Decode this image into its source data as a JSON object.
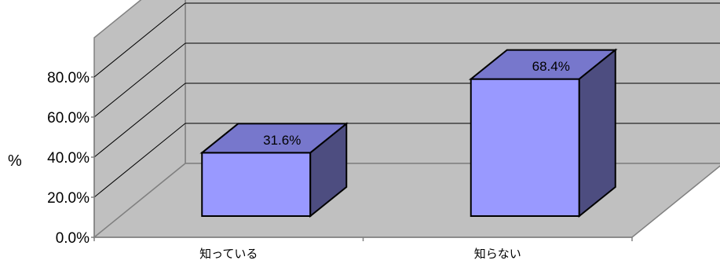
{
  "chart_data": {
    "type": "bar",
    "categories": [
      "知っている",
      "知らない"
    ],
    "values": [
      31.6,
      68.4
    ],
    "data_labels": [
      "31.6%",
      "68.4%"
    ],
    "ylabel": "%",
    "ylim": [
      0,
      80
    ],
    "yticks": [
      "0.0%",
      "20.0%",
      "40.0%",
      "60.0%",
      "80.0%"
    ],
    "grid": true,
    "legend": "none",
    "colors": {
      "wall": "#c0c0c0",
      "floor": "#c0c0c0",
      "bar_front": "#9999ff",
      "bar_top": "#7777cc",
      "bar_side": "#4d4d80",
      "grid": "#000000",
      "edge": "#808080"
    }
  }
}
